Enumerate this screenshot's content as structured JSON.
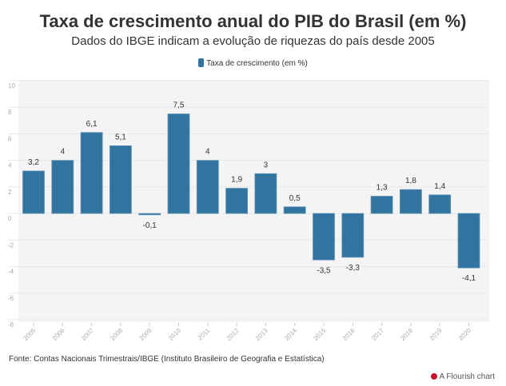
{
  "title": "Taxa de crescimento anual do PIB do Brasil (em %)",
  "subtitle": "Dados do IBGE indicam a evolução de riquezas do país desde 2005",
  "source": "Fonte: Contas Nacionais Trimestrais/IBGE (Instituto Brasileiro de Geografia e Estatística)",
  "credit": "A Flourish chart",
  "chart_data": {
    "type": "bar",
    "categories": [
      "2005",
      "2006",
      "2007",
      "2008",
      "2009",
      "2010",
      "2011",
      "2012",
      "2013",
      "2014",
      "2015",
      "2016",
      "2017",
      "2018",
      "2019",
      "2020"
    ],
    "series": [
      {
        "name": "Taxa de crescimento (em %)",
        "values": [
          3.2,
          4,
          6.1,
          5.1,
          -0.1,
          7.5,
          4,
          1.9,
          3,
          0.5,
          -3.5,
          -3.3,
          1.3,
          1.8,
          1.4,
          -4.1
        ],
        "labels": [
          "3,2",
          "4",
          "6,1",
          "5,1",
          "-0,1",
          "7,5",
          "4",
          "1,9",
          "3",
          "0,5",
          "-3,5",
          "-3,3",
          "1,3",
          "1,8",
          "1,4",
          "-4,1"
        ],
        "color": "#33739f"
      }
    ],
    "ylim": [
      -8,
      10
    ],
    "yticks": [
      "10",
      "8",
      "6",
      "4",
      "2",
      "0",
      "-2",
      "-4",
      "-6",
      "-8"
    ],
    "grid": true,
    "legend": "top-center"
  }
}
